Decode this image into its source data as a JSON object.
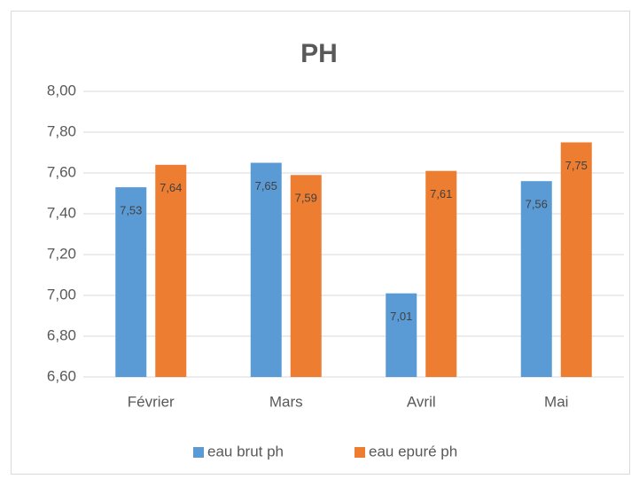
{
  "chart_data": {
    "type": "bar",
    "title": "PH",
    "categories": [
      "Février",
      "Mars",
      "Avril",
      "Mai"
    ],
    "series": [
      {
        "name": "eau brut ph",
        "color": "#5b9bd5",
        "values": [
          7.53,
          7.65,
          7.01,
          7.56
        ],
        "value_labels": [
          "7,53",
          "7,65",
          "7,01",
          "7,56"
        ]
      },
      {
        "name": "eau epuré ph",
        "color": "#ed7d31",
        "values": [
          7.64,
          7.59,
          7.61,
          7.75
        ],
        "value_labels": [
          "7,64",
          "7,59",
          "7,61",
          "7,75"
        ]
      }
    ],
    "ylim": [
      6.6,
      8.0
    ],
    "yticks": [
      {
        "value": 6.6,
        "label": "6,60"
      },
      {
        "value": 6.8,
        "label": "6,80"
      },
      {
        "value": 7.0,
        "label": "7,00"
      },
      {
        "value": 7.2,
        "label": "7,20"
      },
      {
        "value": 7.4,
        "label": "7,40"
      },
      {
        "value": 7.6,
        "label": "7,60"
      },
      {
        "value": 7.8,
        "label": "7,80"
      },
      {
        "value": 8.0,
        "label": "8,00"
      }
    ],
    "grid": true,
    "legend": "bottom"
  }
}
